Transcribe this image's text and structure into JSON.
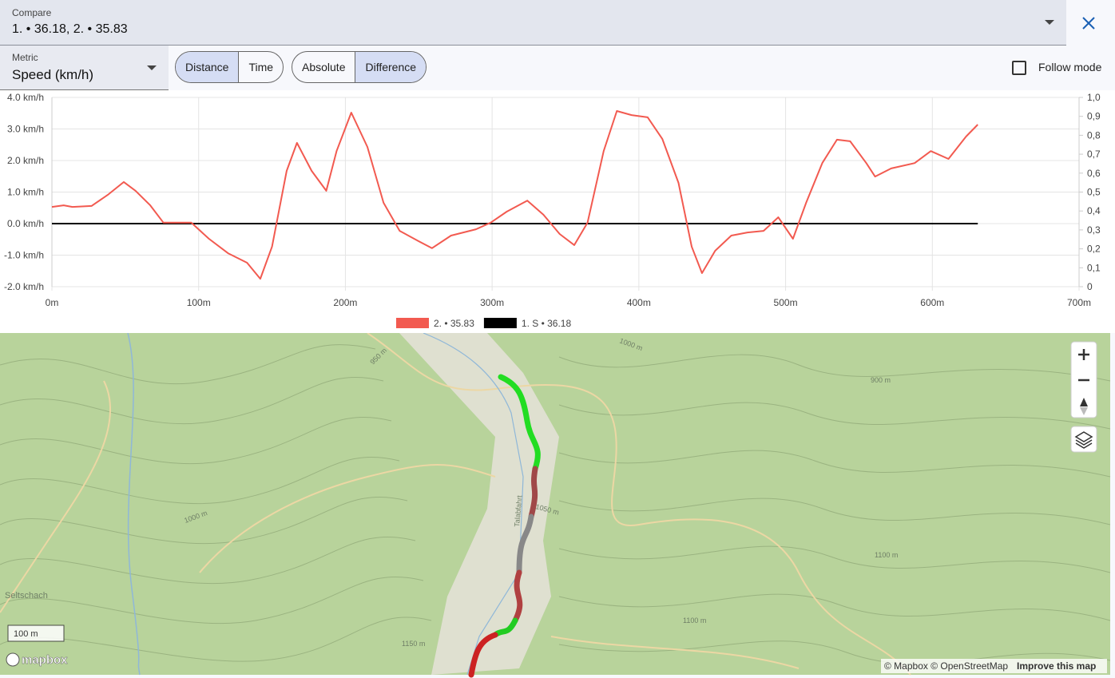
{
  "header": {
    "compare_label": "Compare",
    "compare_value": "1. • 36.18, 2. • 35.83"
  },
  "controls": {
    "metric_label": "Metric",
    "metric_value": "Speed (km/h)",
    "x_mode": [
      "Distance",
      "Time"
    ],
    "y_mode": [
      "Absolute",
      "Difference"
    ],
    "follow_mode": "Follow mode"
  },
  "chart_data": {
    "type": "line",
    "xlim": [
      0,
      700
    ],
    "xticks": [
      {
        "value": 0,
        "label": "0m"
      },
      {
        "value": 100,
        "label": "100m"
      },
      {
        "value": 200,
        "label": "200m"
      },
      {
        "value": 300,
        "label": "300m"
      },
      {
        "value": 400,
        "label": "400m"
      },
      {
        "value": 500,
        "label": "500m"
      },
      {
        "value": 600,
        "label": "600m"
      },
      {
        "value": 700,
        "label": "700m"
      }
    ],
    "ylim": [
      -2,
      4
    ],
    "yticks": [
      {
        "value": -2,
        "label": "-2.0 km/h"
      },
      {
        "value": -1,
        "label": "-1.0 km/h"
      },
      {
        "value": 0,
        "label": "0.0 km/h"
      },
      {
        "value": 1,
        "label": "1.0 km/h"
      },
      {
        "value": 2,
        "label": "2.0 km/h"
      },
      {
        "value": 3,
        "label": "3.0 km/h"
      },
      {
        "value": 4,
        "label": "4.0 km/h"
      }
    ],
    "y2lim": [
      0,
      1
    ],
    "y2ticks": [
      0,
      {
        "value": 0.1,
        "label": "0,1"
      },
      {
        "value": 0.2,
        "label": "0,2"
      },
      {
        "value": 0.3,
        "label": "0,3"
      },
      {
        "value": 0.4,
        "label": "0,4"
      },
      {
        "value": 0.5,
        "label": "0,5"
      },
      {
        "value": 0.6,
        "label": "0,6"
      },
      {
        "value": 0.7,
        "label": "0,7"
      },
      {
        "value": 0.8,
        "label": "0,8"
      },
      {
        "value": 0.9,
        "label": "0,9"
      },
      {
        "value": 1,
        "label": "1,0"
      }
    ],
    "grid": true,
    "series": [
      {
        "name": "2. • 35.83",
        "color": "#f25a50",
        "x": [
          0,
          8,
          14,
          27,
          38,
          49,
          57,
          67,
          76,
          87,
          95,
          107,
          120,
          133,
          142,
          150,
          160,
          167,
          177,
          187,
          194,
          204,
          215,
          226,
          237,
          250,
          259,
          272,
          289,
          299,
          310,
          324,
          335,
          346,
          356,
          365,
          376,
          385,
          395,
          406,
          416,
          427,
          436,
          443,
          452,
          463,
          474,
          485,
          495,
          505,
          514,
          525,
          535,
          544,
          555,
          561,
          572,
          588,
          599,
          611,
          623,
          631
        ],
        "values": [
          0.53,
          0.58,
          0.53,
          0.56,
          0.91,
          1.32,
          1.04,
          0.58,
          0.03,
          0.03,
          0.03,
          -0.48,
          -0.94,
          -1.24,
          -1.75,
          -0.73,
          1.67,
          2.56,
          1.67,
          1.04,
          2.3,
          3.52,
          2.43,
          0.66,
          -0.23,
          -0.56,
          -0.78,
          -0.38,
          -0.18,
          0.03,
          0.38,
          0.73,
          0.28,
          -0.33,
          -0.68,
          0.03,
          2.3,
          3.57,
          3.44,
          3.37,
          2.68,
          1.29,
          -0.73,
          -1.57,
          -0.86,
          -0.38,
          -0.28,
          -0.23,
          0.2,
          -0.48,
          0.66,
          1.92,
          2.66,
          2.61,
          1.92,
          1.49,
          1.75,
          1.92,
          2.3,
          2.05,
          2.76,
          3.14
        ]
      },
      {
        "name": "1. S • 36.18",
        "color": "#000000",
        "x": [
          0,
          631
        ],
        "values": [
          0,
          0
        ]
      }
    ]
  },
  "map": {
    "labels": [
      "1000 m",
      "950 m",
      "900 m",
      "1050 m",
      "1100 m",
      "1150 m",
      "1000 m",
      "1100 m",
      "Talabfahrt",
      "Seltschach"
    ],
    "scale": "100 m",
    "logo": "mapbox",
    "attribution": "© Mapbox © OpenStreetMap",
    "improve": "Improve this map"
  }
}
